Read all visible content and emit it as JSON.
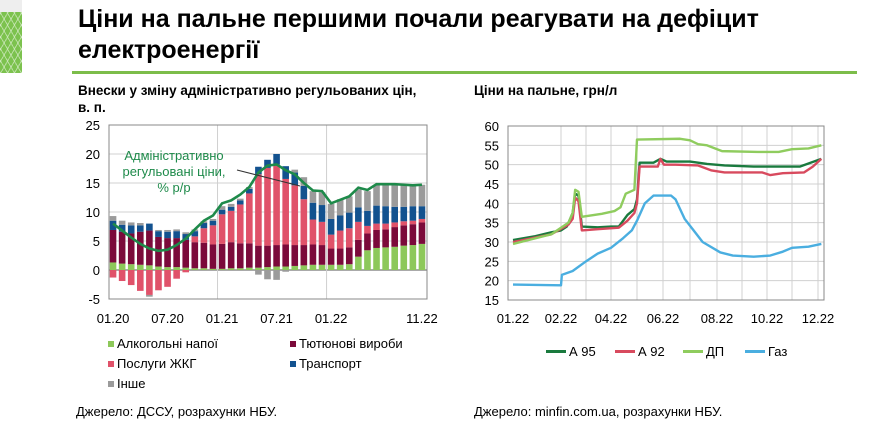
{
  "title": "Ціни на пальне першими почали реагувати на дефіцит електроенергії",
  "left_panel": {
    "subtitle_line1": "Внески у зміну адміністративно регульованих цін,",
    "subtitle_line2": "в. п.",
    "source": "Джерело: ДССУ, розрахунки НБУ."
  },
  "right_panel": {
    "subtitle": "Ціни на пальне, грн/л",
    "source": "Джерело: minfin.com.ua, розрахунки НБУ."
  },
  "chart_data": [
    {
      "type": "bar",
      "stacked": true,
      "ylim": [
        -5,
        25
      ],
      "yticks": [
        "-5",
        "0",
        "5",
        "10",
        "15",
        "20",
        "25"
      ],
      "xtick_labels": [
        "01.20",
        "07.20",
        "01.21",
        "07.21",
        "01.22",
        "11.22"
      ],
      "grid": true,
      "legend_position": "bottom",
      "annotation": "Адміністративно регульовані ціни, % р/р",
      "categories": [
        "01.20",
        "02.20",
        "03.20",
        "04.20",
        "05.20",
        "06.20",
        "07.20",
        "08.20",
        "09.20",
        "10.20",
        "11.20",
        "12.20",
        "01.21",
        "02.21",
        "03.21",
        "04.21",
        "05.21",
        "06.21",
        "07.21",
        "08.21",
        "09.21",
        "10.21",
        "11.21",
        "12.21",
        "01.22",
        "02.22",
        "03.22",
        "04.22",
        "05.22",
        "06.22",
        "07.22",
        "08.22",
        "09.22",
        "10.22",
        "11.22"
      ],
      "series": [
        {
          "name": "Алкогольні напої",
          "color": "#8dc85a",
          "values": [
            1.3,
            1.1,
            1.0,
            0.9,
            0.8,
            0.6,
            0.5,
            0.5,
            0.4,
            0.3,
            0.3,
            0.2,
            0.2,
            0.3,
            0.3,
            0.4,
            0.4,
            0.5,
            0.6,
            0.6,
            0.7,
            0.8,
            0.9,
            0.9,
            0.9,
            0.9,
            1.0,
            2.3,
            3.4,
            3.8,
            3.9,
            4.0,
            4.2,
            4.3,
            4.5
          ]
        },
        {
          "name": "Тютюнові вироби",
          "color": "#7b0a3a",
          "values": [
            5.6,
            5.5,
            5.3,
            5.7,
            6.0,
            5.1,
            5.0,
            5.0,
            4.8,
            4.5,
            4.4,
            4.2,
            4.3,
            4.5,
            4.3,
            4.2,
            3.8,
            3.7,
            3.7,
            3.8,
            3.6,
            3.5,
            3.5,
            3.4,
            2.8,
            2.8,
            2.9,
            2.9,
            2.9,
            3.1,
            3.1,
            3.4,
            3.5,
            3.6,
            3.7
          ]
        },
        {
          "name": "Послуги ЖКГ",
          "color": "#e0526a",
          "values": [
            -1.3,
            -1.9,
            -2.6,
            -3.6,
            -4.3,
            -3.5,
            -2.9,
            -1.5,
            -0.4,
            1.0,
            2.5,
            3.3,
            5.1,
            5.4,
            6.7,
            8.6,
            12.3,
            13.4,
            13.9,
            11.3,
            10.3,
            7.9,
            4.3,
            4.0,
            2.4,
            3.1,
            3.3,
            3.1,
            1.3,
            1.1,
            1.0,
            0.8,
            0.7,
            0.6,
            0.6
          ]
        },
        {
          "name": "Транспорт",
          "color": "#13528f",
          "values": [
            1.6,
            1.2,
            1.4,
            1.1,
            1.2,
            1.0,
            1.1,
            1.2,
            1.0,
            0.9,
            0.9,
            0.8,
            0.8,
            0.7,
            0.7,
            0.8,
            1.3,
            1.4,
            1.8,
            2.2,
            2.2,
            2.3,
            2.9,
            2.9,
            2.7,
            2.6,
            2.7,
            2.5,
            2.6,
            3.1,
            3.0,
            2.7,
            2.5,
            2.5,
            2.2
          ]
        },
        {
          "name": "Інше",
          "color": "#9b9b9b",
          "values": [
            0.8,
            0.7,
            0.5,
            0.4,
            -0.3,
            0.2,
            0.3,
            0.3,
            0.3,
            0.3,
            0.3,
            0.3,
            0.6,
            0.5,
            0.3,
            0.3,
            -0.8,
            -1.6,
            -1.7,
            -0.3,
            0.5,
            1.5,
            2.0,
            2.2,
            2.6,
            2.8,
            2.8,
            3.1,
            3.4,
            3.6,
            3.7,
            3.9,
            3.8,
            3.7,
            3.7
          ]
        }
      ],
      "line": {
        "name": "Адміністративно регульовані ціни, % р/р",
        "color": "#1e8a4a",
        "values": [
          8.0,
          6.8,
          5.6,
          4.5,
          3.7,
          3.3,
          3.5,
          4.3,
          5.4,
          7.0,
          8.5,
          9.4,
          11.5,
          12.0,
          13.0,
          14.3,
          16.8,
          18.0,
          18.2,
          17.2,
          16.5,
          15.0,
          13.7,
          13.6,
          11.5,
          12.1,
          12.7,
          14.2,
          13.8,
          14.8,
          14.8,
          14.8,
          14.7,
          14.6,
          14.7
        ]
      }
    },
    {
      "type": "line",
      "ylim": [
        15,
        60
      ],
      "yticks": [
        "15",
        "20",
        "25",
        "30",
        "35",
        "40",
        "45",
        "50",
        "55",
        "60"
      ],
      "xtick_labels": [
        "01.22",
        "02.22",
        "04.22",
        "06.22",
        "08.22",
        "10.22",
        "12.22"
      ],
      "grid": true,
      "legend_position": "bottom",
      "series": [
        {
          "name": "А 95",
          "color": "#1a7a3e",
          "points": [
            [
              "2022-01-01",
              30.5
            ],
            [
              "2022-01-15",
              31.5
            ],
            [
              "2022-01-25",
              32.5
            ],
            [
              "2022-02-01",
              33
            ],
            [
              "2022-02-08",
              34
            ],
            [
              "2022-02-12",
              36
            ],
            [
              "2022-02-15",
              37.5
            ],
            [
              "2022-02-18",
              42.5
            ],
            [
              "2022-02-22",
              42
            ],
            [
              "2022-02-26",
              34
            ],
            [
              "2022-03-15",
              33.8
            ],
            [
              "2022-04-01",
              34
            ],
            [
              "2022-04-10",
              34
            ],
            [
              "2022-04-20",
              37
            ],
            [
              "2022-04-28",
              38.5
            ],
            [
              "2022-05-01",
              41
            ],
            [
              "2022-05-04",
              50.5
            ],
            [
              "2022-05-20",
              50.5
            ],
            [
              "2022-05-28",
              51.5
            ],
            [
              "2022-06-05",
              50.8
            ],
            [
              "2022-07-01",
              50.8
            ],
            [
              "2022-07-20",
              50.2
            ],
            [
              "2022-08-10",
              49.8
            ],
            [
              "2022-09-15",
              49.5
            ],
            [
              "2022-10-15",
              49.5
            ],
            [
              "2022-11-10",
              49.5
            ],
            [
              "2022-11-20",
              50.3
            ],
            [
              "2022-12-05",
              51.5
            ]
          ]
        },
        {
          "name": "А 92",
          "color": "#d84a5e",
          "points": [
            [
              "2022-01-01",
              30
            ],
            [
              "2022-01-25",
              32
            ],
            [
              "2022-02-10",
              34.5
            ],
            [
              "2022-02-15",
              36
            ],
            [
              "2022-02-18",
              41.5
            ],
            [
              "2022-02-22",
              40.5
            ],
            [
              "2022-02-26",
              33
            ],
            [
              "2022-03-15",
              33.3
            ],
            [
              "2022-04-10",
              33.7
            ],
            [
              "2022-04-20",
              35.5
            ],
            [
              "2022-04-28",
              37.5
            ],
            [
              "2022-05-01",
              40
            ],
            [
              "2022-05-04",
              49.5
            ],
            [
              "2022-05-25",
              49.5
            ],
            [
              "2022-05-28",
              51.5
            ],
            [
              "2022-06-02",
              50
            ],
            [
              "2022-06-15",
              50
            ],
            [
              "2022-07-10",
              49.8
            ],
            [
              "2022-07-25",
              48.5
            ],
            [
              "2022-08-10",
              48
            ],
            [
              "2022-09-25",
              48
            ],
            [
              "2022-10-05",
              47.3
            ],
            [
              "2022-10-20",
              47.8
            ],
            [
              "2022-11-15",
              48
            ],
            [
              "2022-11-25",
              49.5
            ],
            [
              "2022-12-05",
              51.5
            ]
          ]
        },
        {
          "name": "ДП",
          "color": "#8fcc5e",
          "points": [
            [
              "2022-01-01",
              29.5
            ],
            [
              "2022-01-25",
              32
            ],
            [
              "2022-02-10",
              35
            ],
            [
              "2022-02-15",
              37.5
            ],
            [
              "2022-02-18",
              43.5
            ],
            [
              "2022-02-22",
              43
            ],
            [
              "2022-02-26",
              36.5
            ],
            [
              "2022-03-20",
              37.3
            ],
            [
              "2022-04-05",
              38
            ],
            [
              "2022-04-12",
              39
            ],
            [
              "2022-04-18",
              42.5
            ],
            [
              "2022-04-28",
              43.5
            ],
            [
              "2022-05-01",
              56.5
            ],
            [
              "2022-06-20",
              56.7
            ],
            [
              "2022-07-01",
              56.3
            ],
            [
              "2022-07-10",
              55.3
            ],
            [
              "2022-07-20",
              55
            ],
            [
              "2022-08-07",
              53.5
            ],
            [
              "2022-09-20",
              53.3
            ],
            [
              "2022-10-15",
              53.3
            ],
            [
              "2022-11-01",
              54
            ],
            [
              "2022-11-20",
              54.2
            ],
            [
              "2022-12-05",
              55
            ]
          ]
        },
        {
          "name": "Газ",
          "color": "#4aaee0",
          "points": [
            [
              "2022-01-01",
              19
            ],
            [
              "2022-01-31",
              18.8
            ],
            [
              "2022-02-02",
              21.5
            ],
            [
              "2022-02-15",
              22.5
            ],
            [
              "2022-03-01",
              25
            ],
            [
              "2022-03-15",
              27
            ],
            [
              "2022-04-01",
              28.5
            ],
            [
              "2022-04-15",
              31
            ],
            [
              "2022-04-25",
              33
            ],
            [
              "2022-05-01",
              35.5
            ],
            [
              "2022-05-10",
              40
            ],
            [
              "2022-05-20",
              42
            ],
            [
              "2022-06-10",
              42
            ],
            [
              "2022-06-15",
              41
            ],
            [
              "2022-06-25",
              36
            ],
            [
              "2022-07-05",
              33
            ],
            [
              "2022-07-15",
              30
            ],
            [
              "2022-08-05",
              27.3
            ],
            [
              "2022-08-20",
              26.5
            ],
            [
              "2022-09-15",
              26.2
            ],
            [
              "2022-10-05",
              26.5
            ],
            [
              "2022-10-20",
              27.5
            ],
            [
              "2022-11-01",
              28.5
            ],
            [
              "2022-11-20",
              28.8
            ],
            [
              "2022-12-05",
              29.5
            ]
          ]
        }
      ]
    }
  ]
}
